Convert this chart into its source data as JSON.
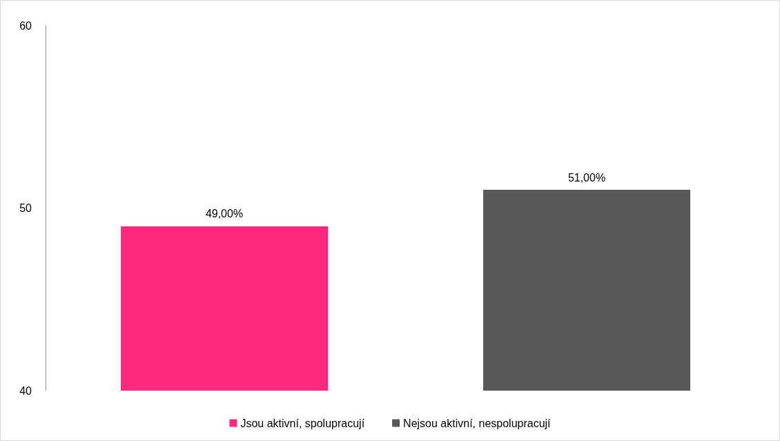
{
  "chart_data": {
    "type": "bar",
    "categories": [
      null
    ],
    "series": [
      {
        "name": "Jsou aktivní, spolupracují",
        "color": "#ff2a7f",
        "values": [
          49
        ],
        "value_labels": [
          "49,00%"
        ]
      },
      {
        "name": "Nejsou aktivní, nespolupracují",
        "color": "#595959",
        "values": [
          51
        ],
        "value_labels": [
          "51,00%"
        ]
      }
    ],
    "ylim": [
      40,
      60
    ],
    "yticks": [
      40,
      50,
      60
    ],
    "grid": false,
    "legend": "bottom"
  }
}
